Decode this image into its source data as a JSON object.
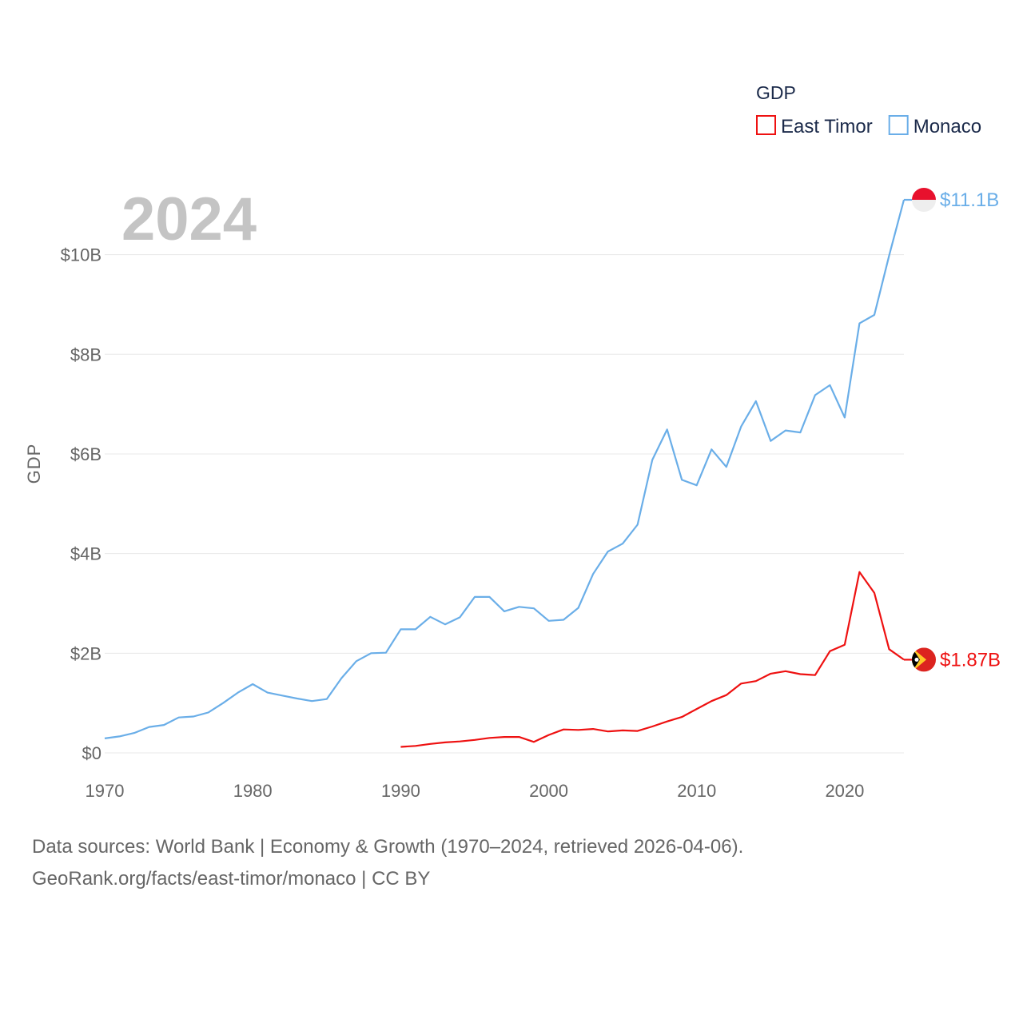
{
  "chart_data": {
    "type": "line",
    "year_label": "2024",
    "ylabel": "GDP",
    "xlim": [
      1970,
      2024
    ],
    "ylim": [
      0,
      11.1
    ],
    "x_ticks": [
      {
        "value": 1970,
        "label": "1970"
      },
      {
        "value": 1980,
        "label": "1980"
      },
      {
        "value": 1990,
        "label": "1990"
      },
      {
        "value": 2000,
        "label": "2000"
      },
      {
        "value": 2010,
        "label": "2010"
      },
      {
        "value": 2020,
        "label": "2020"
      }
    ],
    "y_ticks": [
      {
        "value": 0,
        "label": "$0"
      },
      {
        "value": 2,
        "label": "$2B"
      },
      {
        "value": 4,
        "label": "$4B"
      },
      {
        "value": 6,
        "label": "$6B"
      },
      {
        "value": 8,
        "label": "$8B"
      },
      {
        "value": 10,
        "label": "$10B"
      }
    ],
    "legend": {
      "title": "GDP",
      "position": "top-right",
      "items": [
        {
          "name": "East Timor",
          "color": "#ee1111"
        },
        {
          "name": "Monaco",
          "color": "#6aaee8"
        }
      ]
    },
    "series": [
      {
        "name": "Monaco",
        "color": "#6aaee8",
        "end_label": "$11.1B",
        "flag_colors": [
          "#e8112d",
          "#eeeeee"
        ],
        "x": [
          1970,
          1971,
          1972,
          1973,
          1974,
          1975,
          1976,
          1977,
          1978,
          1979,
          1980,
          1981,
          1982,
          1983,
          1984,
          1985,
          1986,
          1987,
          1988,
          1989,
          1990,
          1991,
          1992,
          1993,
          1994,
          1995,
          1996,
          1997,
          1998,
          1999,
          2000,
          2001,
          2002,
          2003,
          2004,
          2005,
          2006,
          2007,
          2008,
          2009,
          2010,
          2011,
          2012,
          2013,
          2014,
          2015,
          2016,
          2017,
          2018,
          2019,
          2020,
          2021,
          2022,
          2023,
          2024
        ],
        "values": [
          0.29,
          0.33,
          0.4,
          0.52,
          0.56,
          0.71,
          0.73,
          0.81,
          1.0,
          1.21,
          1.38,
          1.21,
          1.15,
          1.09,
          1.04,
          1.08,
          1.5,
          1.84,
          2.0,
          2.01,
          2.48,
          2.48,
          2.73,
          2.58,
          2.72,
          3.13,
          3.13,
          2.84,
          2.93,
          2.9,
          2.65,
          2.67,
          2.91,
          3.59,
          4.04,
          4.2,
          4.58,
          5.88,
          6.49,
          5.48,
          5.37,
          6.09,
          5.74,
          6.55,
          7.06,
          6.26,
          6.47,
          6.43,
          7.18,
          7.38,
          6.73,
          8.62,
          8.79,
          9.98,
          11.1
        ]
      },
      {
        "name": "East Timor",
        "color": "#ee1111",
        "end_label": "$1.87B",
        "flag_colors": [
          "#dc241f",
          "#ffc726",
          "#000000"
        ],
        "x": [
          1990,
          1991,
          1992,
          1993,
          1994,
          1995,
          1996,
          1997,
          1998,
          1999,
          2000,
          2001,
          2002,
          2003,
          2004,
          2005,
          2006,
          2007,
          2008,
          2009,
          2010,
          2011,
          2012,
          2013,
          2014,
          2015,
          2016,
          2017,
          2018,
          2019,
          2020,
          2021,
          2022,
          2023,
          2024
        ],
        "values": [
          0.12,
          0.14,
          0.18,
          0.21,
          0.23,
          0.26,
          0.3,
          0.32,
          0.32,
          0.22,
          0.36,
          0.47,
          0.46,
          0.48,
          0.43,
          0.45,
          0.44,
          0.53,
          0.63,
          0.72,
          0.88,
          1.04,
          1.16,
          1.39,
          1.44,
          1.59,
          1.64,
          1.58,
          1.56,
          2.04,
          2.17,
          3.63,
          3.21,
          2.08,
          1.87
        ]
      }
    ]
  },
  "footer": {
    "line1": "Data sources: World Bank | Economy & Growth (1970–2024, retrieved 2026-04-06).",
    "line2": "GeoRank.org/facts/east-timor/monaco | CC BY"
  }
}
